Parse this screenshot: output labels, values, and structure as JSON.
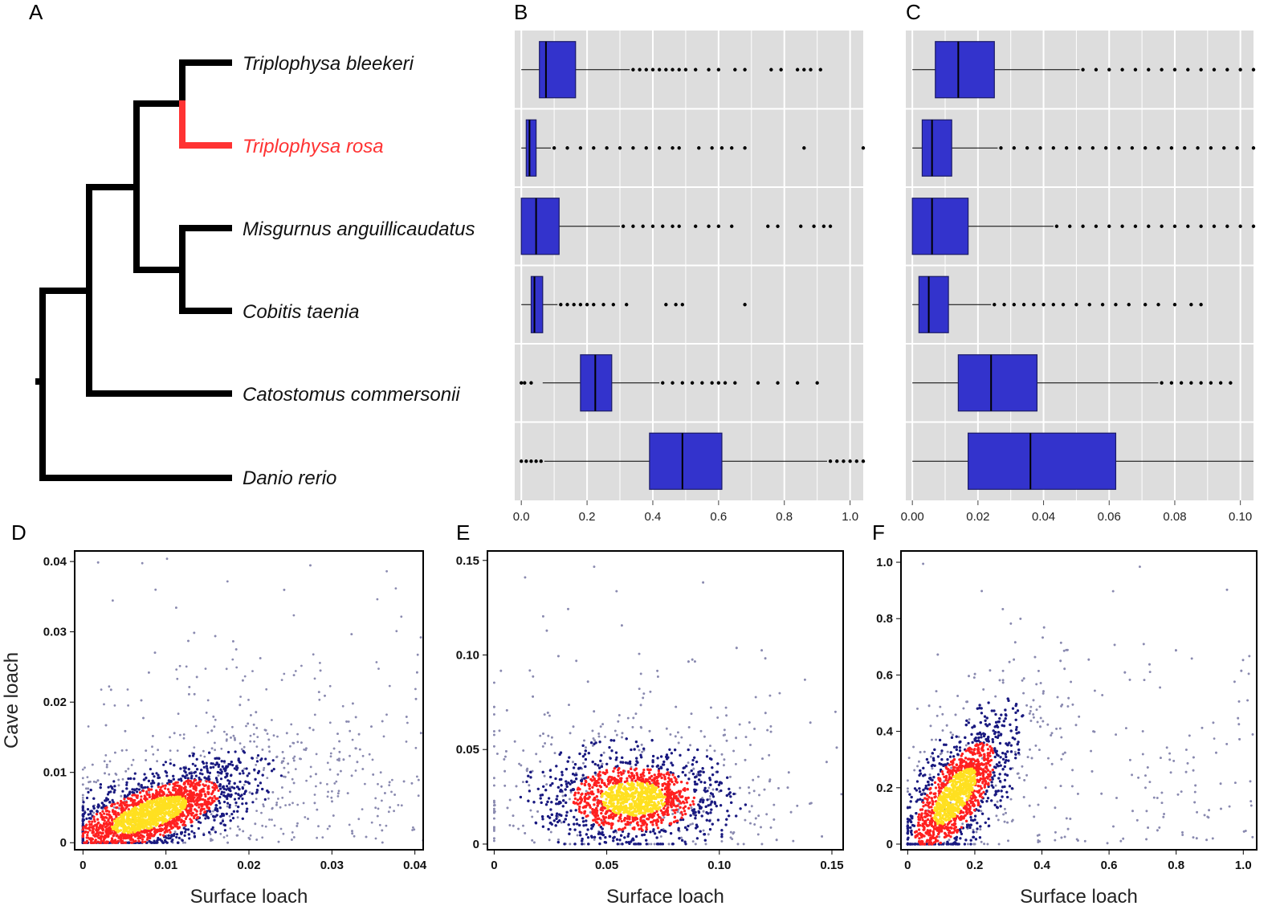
{
  "panel_labels": {
    "a": "A",
    "b": "B",
    "c": "C",
    "d": "D",
    "e": "E",
    "f": "F"
  },
  "colors": {
    "tree": "#000000",
    "highlight": "#ff3333",
    "box_fill": "#3333cc",
    "box_edge": "#1a1a66",
    "panel_bg": "#dddddd",
    "grid": "#ffffff",
    "sparse": "#8a8ab0",
    "dense_low": "#1a1a80",
    "dense_mid": "#ff2020",
    "dense_high": "#ffe020"
  },
  "tree": {
    "species": [
      {
        "name": "Triplophysa bleekeri",
        "highlight": false
      },
      {
        "name": "Triplophysa rosa",
        "highlight": true
      },
      {
        "name": "Misgurnus anguillicaudatus",
        "highlight": false
      },
      {
        "name": "Cobitis taenia",
        "highlight": false
      },
      {
        "name": "Catostomus commersonii",
        "highlight": false
      },
      {
        "name": "Danio rerio",
        "highlight": false
      }
    ]
  },
  "chart_data": [
    {
      "id": "B",
      "type": "box",
      "title": "",
      "xlabel": "",
      "ylabel": "",
      "xlim": [
        -0.02,
        1.04
      ],
      "x_ticks": [
        "0.0",
        "0.2",
        "0.4",
        "0.6",
        "0.8",
        "1.0"
      ],
      "categories": [
        "Triplophysa bleekeri",
        "Triplophysa rosa",
        "Misgurnus anguillicaudatus",
        "Cobitis taenia",
        "Catostomus commersonii",
        "Danio rerio"
      ],
      "boxes": [
        {
          "whisker_low": 0.0,
          "q1": 0.055,
          "median": 0.075,
          "q3": 0.165,
          "whisker_high": 0.33,
          "outliers": [
            0.34,
            0.36,
            0.38,
            0.4,
            0.42,
            0.44,
            0.46,
            0.48,
            0.5,
            0.53,
            0.57,
            0.6,
            0.65,
            0.68,
            0.76,
            0.79,
            0.84,
            0.86,
            0.88,
            0.91
          ]
        },
        {
          "whisker_low": 0.0,
          "q1": 0.015,
          "median": 0.025,
          "q3": 0.045,
          "whisker_high": 0.09,
          "outliers": [
            0.1,
            0.14,
            0.18,
            0.22,
            0.26,
            0.3,
            0.34,
            0.38,
            0.42,
            0.46,
            0.48,
            0.54,
            0.58,
            0.61,
            0.64,
            0.68,
            0.86,
            1.04
          ]
        },
        {
          "whisker_low": 0.0,
          "q1": 0.0,
          "median": 0.045,
          "q3": 0.115,
          "whisker_high": 0.3,
          "outliers": [
            0.31,
            0.34,
            0.37,
            0.4,
            0.43,
            0.46,
            0.48,
            0.53,
            0.57,
            0.6,
            0.64,
            0.75,
            0.78,
            0.85,
            0.89,
            0.92,
            0.94
          ]
        },
        {
          "whisker_low": 0.0,
          "q1": 0.03,
          "median": 0.04,
          "q3": 0.065,
          "whisker_high": 0.11,
          "outliers": [
            0.12,
            0.14,
            0.16,
            0.18,
            0.2,
            0.22,
            0.25,
            0.28,
            0.32,
            0.44,
            0.47,
            0.49,
            0.68
          ]
        },
        {
          "whisker_low": 0.065,
          "q1": 0.18,
          "median": 0.225,
          "q3": 0.275,
          "whisker_high": 0.42,
          "outliers": [
            0.0,
            0.01,
            0.03,
            0.43,
            0.46,
            0.49,
            0.52,
            0.55,
            0.58,
            0.6,
            0.62,
            0.65,
            0.72,
            0.78,
            0.84,
            0.9
          ]
        },
        {
          "whisker_low": 0.07,
          "q1": 0.39,
          "median": 0.49,
          "q3": 0.61,
          "whisker_high": 0.93,
          "outliers": [
            0.0,
            0.015,
            0.03,
            0.045,
            0.06,
            0.94,
            0.96,
            0.98,
            1.0,
            1.02,
            1.04
          ]
        }
      ]
    },
    {
      "id": "C",
      "type": "box",
      "title": "",
      "xlabel": "",
      "ylabel": "",
      "xlim": [
        -0.002,
        0.104
      ],
      "x_ticks": [
        "0.00",
        "0.02",
        "0.04",
        "0.06",
        "0.08",
        "0.10"
      ],
      "categories": [
        "Triplophysa bleekeri",
        "Triplophysa rosa",
        "Misgurnus anguillicaudatus",
        "Cobitis taenia",
        "Catostomus commersonii",
        "Danio rerio"
      ],
      "boxes": [
        {
          "whisker_low": 0.0,
          "q1": 0.007,
          "median": 0.014,
          "q3": 0.025,
          "whisker_high": 0.051,
          "outliers": [
            0.052,
            0.056,
            0.06,
            0.064,
            0.068,
            0.072,
            0.076,
            0.08,
            0.084,
            0.088,
            0.092,
            0.096,
            0.1,
            0.104
          ]
        },
        {
          "whisker_low": 0.0,
          "q1": 0.003,
          "median": 0.006,
          "q3": 0.012,
          "whisker_high": 0.026,
          "outliers": [
            0.027,
            0.031,
            0.035,
            0.039,
            0.043,
            0.047,
            0.051,
            0.055,
            0.059,
            0.063,
            0.067,
            0.071,
            0.075,
            0.079,
            0.083,
            0.087,
            0.091,
            0.095,
            0.099,
            0.104
          ]
        },
        {
          "whisker_low": 0.0,
          "q1": 0.0,
          "median": 0.006,
          "q3": 0.017,
          "whisker_high": 0.043,
          "outliers": [
            0.044,
            0.048,
            0.052,
            0.056,
            0.06,
            0.064,
            0.068,
            0.072,
            0.076,
            0.08,
            0.084,
            0.088,
            0.092,
            0.096,
            0.1,
            0.104
          ]
        },
        {
          "whisker_low": 0.0,
          "q1": 0.002,
          "median": 0.005,
          "q3": 0.011,
          "whisker_high": 0.024,
          "outliers": [
            0.025,
            0.028,
            0.031,
            0.034,
            0.037,
            0.04,
            0.043,
            0.046,
            0.05,
            0.054,
            0.058,
            0.062,
            0.066,
            0.071,
            0.075,
            0.08,
            0.085,
            0.088
          ]
        },
        {
          "whisker_low": 0.0,
          "q1": 0.014,
          "median": 0.024,
          "q3": 0.038,
          "whisker_high": 0.075,
          "outliers": [
            0.076,
            0.079,
            0.082,
            0.085,
            0.088,
            0.091,
            0.094,
            0.097
          ]
        },
        {
          "whisker_low": 0.0,
          "q1": 0.017,
          "median": 0.036,
          "q3": 0.062,
          "whisker_high": 0.104,
          "outliers": []
        }
      ]
    },
    {
      "id": "D",
      "type": "scatter",
      "title": "",
      "xlabel": "Surface loach",
      "ylabel": "Cave loach",
      "xlim": [
        -0.001,
        0.041
      ],
      "ylim": [
        -0.001,
        0.0415
      ],
      "x_ticks": [
        "0",
        "0.01",
        "0.02",
        "0.03",
        "0.04"
      ],
      "y_ticks": [
        "0",
        "0.01",
        "0.02",
        "0.03",
        "0.04"
      ],
      "density_center": [
        0.008,
        0.004
      ],
      "density_spread": [
        0.005,
        0.0022
      ],
      "correlation_slope": 0.38,
      "n_points": 4200
    },
    {
      "id": "E",
      "type": "scatter",
      "title": "",
      "xlabel": "Surface loach",
      "ylabel": "",
      "xlim": [
        -0.003,
        0.155
      ],
      "ylim": [
        -0.003,
        0.155
      ],
      "x_ticks": [
        "0",
        "0.05",
        "0.10",
        "0.15"
      ],
      "y_ticks": [
        "0",
        "0.05",
        "0.10",
        "0.15"
      ],
      "density_center": [
        0.062,
        0.024
      ],
      "density_spread": [
        0.016,
        0.01
      ],
      "correlation_slope": 0.0,
      "n_points": 4200
    },
    {
      "id": "F",
      "type": "scatter",
      "title": "",
      "xlabel": "Surface loach",
      "ylabel": "",
      "xlim": [
        -0.02,
        1.04
      ],
      "ylim": [
        -0.02,
        1.04
      ],
      "x_ticks": [
        "0",
        "0.2",
        "0.4",
        "0.6",
        "0.8",
        "1.0"
      ],
      "y_ticks": [
        "0",
        "0.2",
        "0.4",
        "0.6",
        "0.8",
        "1.0"
      ],
      "density_center": [
        0.14,
        0.17
      ],
      "density_spread": [
        0.07,
        0.08
      ],
      "correlation_slope": 1.1,
      "n_points": 4200
    }
  ]
}
